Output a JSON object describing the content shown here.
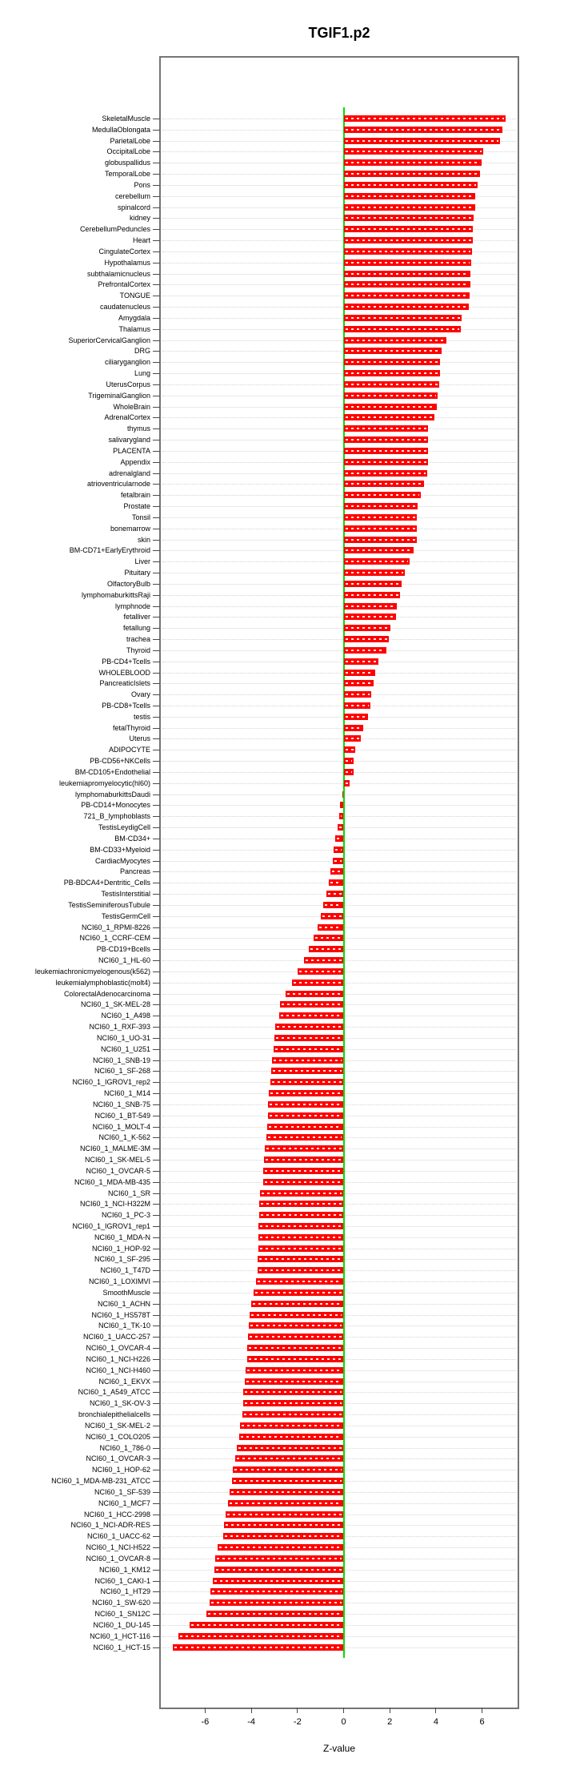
{
  "title": "TGIF1.p2",
  "chart_data": {
    "type": "bar",
    "orientation": "horizontal",
    "title": "TGIF1.p2",
    "xlabel": "Z-value",
    "x_ticks": [
      -6,
      -4,
      -2,
      0,
      2,
      4,
      6
    ],
    "xlim": [
      -7.9,
      7.5
    ],
    "grid": "dotted-horizontal-per-row",
    "legend": "none",
    "bar_color": "#FE0000",
    "zero_line_color": "#00DD00",
    "categories": [
      "SkeletalMuscle",
      "MedullaOblongata",
      "ParietalLobe",
      "OccipitalLobe",
      "globuspallidus",
      "TemporalLobe",
      "Pons",
      "cerebellum",
      "spinalcord",
      "kidney",
      "CerebellumPeduncles",
      "Heart",
      "CingulateCortex",
      "Hypothalamus",
      "subthalamicnucleus",
      "PrefrontalCortex",
      "TONGUE",
      "caudatenucleus",
      "Amygdala",
      "Thalamus",
      "SuperiorCervicalGanglion",
      "DRG",
      "ciliaryganglion",
      "Lung",
      "UterusCorpus",
      "TrigeminalGanglion",
      "WholeBrain",
      "AdrenalCortex",
      "thymus",
      "salivarygland",
      "PLACENTA",
      "Appendix",
      "adrenalgland",
      "atrioventricularnode",
      "fetalbrain",
      "Prostate",
      "Tonsil",
      "bonemarrow",
      "skin",
      "BM-CD71+EarlyErythroid",
      "Liver",
      "Pituitary",
      "OlfactoryBulb",
      "lymphomaburkittsRaji",
      "lymphnode",
      "fetalliver",
      "fetallung",
      "trachea",
      "Thyroid",
      "PB-CD4+Tcells",
      "WHOLEBLOOD",
      "PancreaticIslets",
      "Ovary",
      "PB-CD8+Tcells",
      "testis",
      "fetalThyroid",
      "Uterus",
      "ADIPOCYTE",
      "PB-CD56+NKCells",
      "BM-CD105+Endothelial",
      "leukemiapromyelocytic(hl60)",
      "lymphomaburkittsDaudi",
      "PB-CD14+Monocytes",
      "721_B_lymphoblasts",
      "TestisLeydigCell",
      "BM-CD34+",
      "BM-CD33+Myeloid",
      "CardiacMyocytes",
      "Pancreas",
      "PB-BDCA4+Dentritic_Cells",
      "TestisInterstitial",
      "TestisSeminiferousTubule",
      "TestisGermCell",
      "NCI60_1_RPMI-8226",
      "NCI60_1_CCRF-CEM",
      "PB-CD19+Bcells",
      "NCI60_1_HL-60",
      "leukemiachronicmyelogenous(k562)",
      "leukemialymphoblastic(molt4)",
      "ColorectalAdenocarcinoma",
      "NCI60_1_SK-MEL-28",
      "NCI60_1_A498",
      "NCI60_1_RXF-393",
      "NCI60_1_UO-31",
      "NCI60_1_U251",
      "NCI60_1_SNB-19",
      "NCI60_1_SF-268",
      "NCI60_1_IGROV1_rep2",
      "NCI60_1_M14",
      "NCI60_1_SNB-75",
      "NCI60_1_BT-549",
      "NCI60_1_MOLT-4",
      "NCI60_1_K-562",
      "NCI60_1_MALME-3M",
      "NCI60_1_SK-MEL-5",
      "NCI60_1_OVCAR-5",
      "NCI60_1_MDA-MB-435",
      "NCI60_1_SR",
      "NCI60_1_NCI-H322M",
      "NCI60_1_PC-3",
      "NCI60_1_IGROV1_rep1",
      "NCI60_1_MDA-N",
      "NCI60_1_HOP-92",
      "NCI60_1_SF-295",
      "NCI60_1_T47D",
      "NCI60_1_LOXIMVI",
      "SmoothMuscle",
      "NCI60_1_ACHN",
      "NCI60_1_HS578T",
      "NCI60_1_TK-10",
      "NCI60_1_UACC-257",
      "NCI60_1_OVCAR-4",
      "NCI60_1_NCI-H226",
      "NCI60_1_NCI-H460",
      "NCI60_1_EKVX",
      "NCI60_1_A549_ATCC",
      "NCI60_1_SK-OV-3",
      "bronchialepithelialcells",
      "NCI60_1_SK-MEL-2",
      "NCI60_1_COLO205",
      "NCI60_1_786-0",
      "NCI60_1_OVCAR-3",
      "NCI60_1_HOP-62",
      "NCI60_1_MDA-MB-231_ATCC",
      "NCI60_1_SF-539",
      "NCI60_1_MCF7",
      "NCI60_1_HCC-2998",
      "NCI60_1_NCI-ADR-RES",
      "NCI60_1_UACC-62",
      "NCI60_1_NCI-H522",
      "NCI60_1_OVCAR-8",
      "NCI60_1_KM12",
      "NCI60_1_CAKI-1",
      "NCI60_1_HT29",
      "NCI60_1_SW-620",
      "NCI60_1_SN12C",
      "NCI60_1_DU-145",
      "NCI60_1_HCT-116",
      "NCI60_1_HCT-15"
    ],
    "values": [
      7.03,
      6.89,
      6.78,
      6.06,
      5.99,
      5.9,
      5.79,
      5.71,
      5.69,
      5.64,
      5.61,
      5.6,
      5.57,
      5.52,
      5.49,
      5.48,
      5.46,
      5.44,
      5.11,
      5.09,
      4.45,
      4.24,
      4.18,
      4.16,
      4.15,
      4.09,
      4.03,
      3.95,
      3.66,
      3.65,
      3.65,
      3.65,
      3.61,
      3.48,
      3.33,
      3.19,
      3.18,
      3.16,
      3.16,
      3.02,
      2.85,
      2.64,
      2.53,
      2.44,
      2.32,
      2.28,
      2.03,
      1.95,
      1.86,
      1.51,
      1.37,
      1.31,
      1.2,
      1.17,
      1.07,
      0.84,
      0.76,
      0.5,
      0.44,
      0.42,
      0.27,
      -0.04,
      -0.15,
      -0.2,
      -0.26,
      -0.35,
      -0.44,
      -0.48,
      -0.56,
      -0.65,
      -0.76,
      -0.87,
      -0.98,
      -1.12,
      -1.3,
      -1.5,
      -1.72,
      -2.0,
      -2.25,
      -2.52,
      -2.75,
      -2.8,
      -2.97,
      -3.0,
      -3.03,
      -3.11,
      -3.14,
      -3.18,
      -3.23,
      -3.26,
      -3.29,
      -3.32,
      -3.35,
      -3.43,
      -3.46,
      -3.47,
      -3.49,
      -3.62,
      -3.64,
      -3.66,
      -3.68,
      -3.69,
      -3.7,
      -3.72,
      -3.73,
      -3.79,
      -3.91,
      -3.99,
      -4.07,
      -4.1,
      -4.15,
      -4.17,
      -4.19,
      -4.26,
      -4.28,
      -4.34,
      -4.36,
      -4.38,
      -4.49,
      -4.53,
      -4.63,
      -4.7,
      -4.8,
      -4.84,
      -4.95,
      -5.01,
      -5.1,
      -5.17,
      -5.23,
      -5.46,
      -5.58,
      -5.61,
      -5.65,
      -5.78,
      -5.82,
      -5.96,
      -6.66,
      -7.16,
      -7.39
    ]
  }
}
